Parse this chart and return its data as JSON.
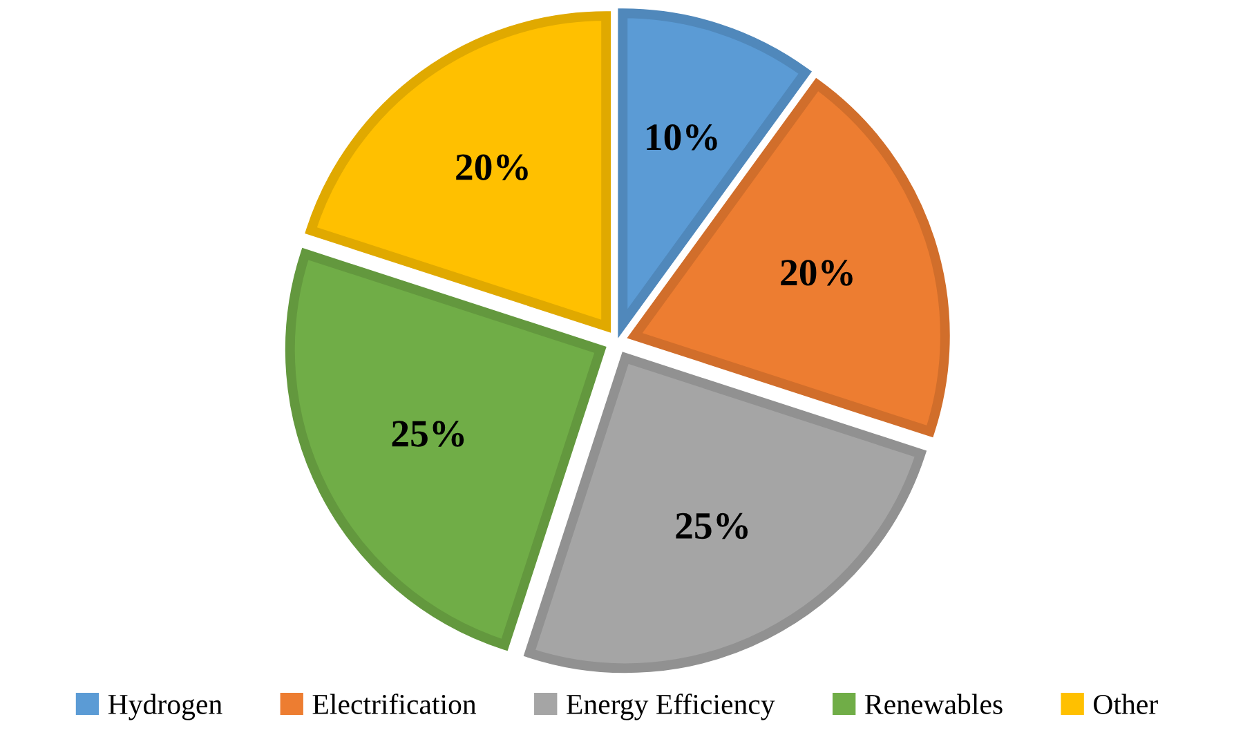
{
  "chart_data": {
    "type": "pie",
    "categories": [
      "Hydrogen",
      "Electrification",
      "Energy Efficiency",
      "Renewables",
      "Other"
    ],
    "values": [
      10,
      20,
      25,
      25,
      20
    ],
    "colors": [
      "#5b9bd5",
      "#ed7d31",
      "#a5a5a5",
      "#70ad47",
      "#ffc000"
    ],
    "value_labels": [
      "10%",
      "20%",
      "25%",
      "25%",
      "20%"
    ],
    "legend": "bottom"
  }
}
